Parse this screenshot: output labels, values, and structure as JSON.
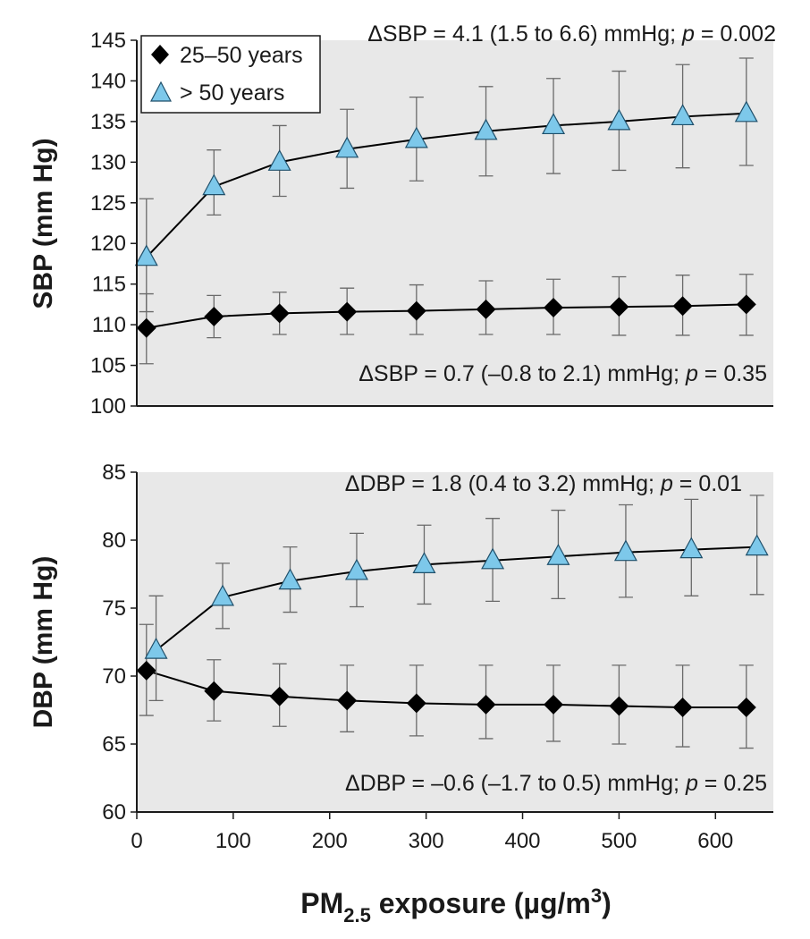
{
  "chart_data": [
    {
      "type": "line",
      "ylabel": "SBP (mm Hg)",
      "ylim": [
        100,
        145
      ],
      "yticks": [
        "100",
        "105",
        "110",
        "115",
        "120",
        "125",
        "130",
        "135",
        "140",
        "145"
      ],
      "xlim": [
        0,
        660
      ],
      "grid": false,
      "legend_position": "top-left",
      "annotation_top": {
        "prefix": "ΔSBP = 4.1 (1.5 to 6.6) mmHg; ",
        "p": "p",
        "suffix": " = 0.002"
      },
      "annotation_bottom": {
        "prefix": "ΔSBP = 0.7 (–0.8 to 2.1) mmHg; ",
        "p": "p",
        "suffix": " = 0.35"
      },
      "series": [
        {
          "name": "25–50 years",
          "marker": "diamond",
          "x": [
            10,
            80,
            148,
            218,
            290,
            362,
            432,
            500,
            566,
            632
          ],
          "y": [
            109.6,
            111.0,
            111.4,
            111.6,
            111.7,
            111.9,
            112.1,
            112.2,
            112.3,
            112.5
          ],
          "lower": [
            105.2,
            108.4,
            108.8,
            108.8,
            108.8,
            108.8,
            108.8,
            108.7,
            108.7,
            108.7
          ],
          "upper": [
            113.8,
            113.6,
            114.0,
            114.5,
            114.9,
            115.4,
            115.6,
            115.9,
            116.1,
            116.2
          ]
        },
        {
          "name": "> 50 years",
          "marker": "triangle",
          "x": [
            10,
            80,
            148,
            218,
            290,
            362,
            432,
            500,
            566,
            632
          ],
          "y": [
            118.3,
            127.0,
            130.0,
            131.6,
            132.8,
            133.8,
            134.5,
            135.0,
            135.6,
            136.0
          ],
          "lower": [
            111.6,
            123.5,
            125.8,
            126.8,
            127.7,
            128.3,
            128.6,
            129.0,
            129.3,
            129.6
          ],
          "upper": [
            125.5,
            131.5,
            134.5,
            136.5,
            138.0,
            139.3,
            140.3,
            141.2,
            142.0,
            142.8
          ]
        }
      ]
    },
    {
      "type": "line",
      "ylabel": "DBP (mm Hg)",
      "xlabel_main": "PM",
      "xlabel_sub": "2.5",
      "xlabel_mid": " exposure (µg/m",
      "xlabel_sup": "3",
      "xlabel_end": ")",
      "ylim": [
        60,
        85
      ],
      "yticks": [
        "60",
        "65",
        "70",
        "75",
        "80",
        "85"
      ],
      "xlim": [
        0,
        660
      ],
      "xticks": [
        0,
        100,
        200,
        300,
        400,
        500,
        600
      ],
      "xtick_labels": [
        "0",
        "100",
        "200",
        "300",
        "400",
        "500",
        "600"
      ],
      "grid": false,
      "annotation_top": {
        "prefix": "ΔDBP = 1.8 (0.4 to 3.2) mmHg; ",
        "p": "p",
        "suffix": " = 0.01"
      },
      "annotation_bottom": {
        "prefix": "ΔDBP = –0.6 (–1.7 to 0.5) mmHg; ",
        "p": "p",
        "suffix": " = 0.25"
      },
      "series": [
        {
          "name": "25–50 years",
          "marker": "diamond",
          "x": [
            10,
            80,
            148,
            218,
            290,
            362,
            432,
            500,
            566,
            632
          ],
          "y": [
            70.4,
            68.9,
            68.5,
            68.2,
            68.0,
            67.9,
            67.9,
            67.8,
            67.7,
            67.7
          ],
          "lower": [
            67.1,
            66.7,
            66.3,
            65.9,
            65.6,
            65.4,
            65.2,
            65.0,
            64.8,
            64.7
          ],
          "upper": [
            73.8,
            71.2,
            70.9,
            70.8,
            70.8,
            70.8,
            70.8,
            70.8,
            70.8,
            70.8
          ]
        },
        {
          "name": "> 50 years",
          "marker": "triangle",
          "x": [
            20,
            89,
            159,
            228,
            298,
            369,
            437,
            507,
            575,
            643
          ],
          "y": [
            71.9,
            75.8,
            77.0,
            77.7,
            78.2,
            78.5,
            78.8,
            79.1,
            79.3,
            79.5
          ],
          "lower": [
            68.2,
            73.5,
            74.7,
            75.1,
            75.3,
            75.5,
            75.7,
            75.8,
            75.9,
            76.0
          ],
          "upper": [
            75.9,
            78.3,
            79.5,
            80.5,
            81.1,
            81.6,
            82.2,
            82.6,
            83.0,
            83.3
          ]
        }
      ]
    }
  ],
  "legend": {
    "items": [
      {
        "label": "25–50 years",
        "marker": "diamond"
      },
      {
        "label": "> 50 years",
        "marker": "triangle"
      }
    ]
  },
  "colors": {
    "plot_background": "#e8e8e8",
    "line": "#000000",
    "error_bar": "#6a6a6a",
    "diamond_fill": "#000000",
    "triangle_fill": "#7dc8ea",
    "triangle_stroke": "#1f4f6a"
  }
}
